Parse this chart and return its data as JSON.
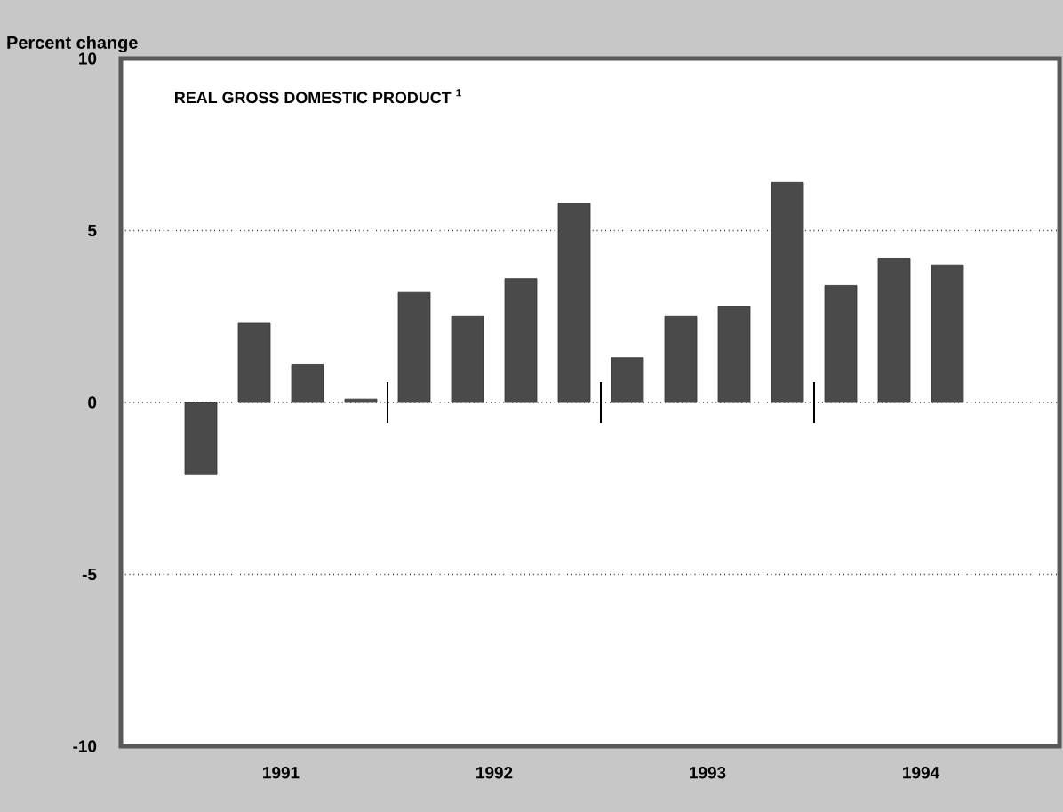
{
  "chart_data": {
    "type": "bar",
    "title": "REAL GROSS DOMESTIC PRODUCT $^{1}$",
    "ylabel": "Percent change",
    "x": [
      1991.125,
      1991.375,
      1991.625,
      1991.875,
      1992.125,
      1992.375,
      1992.625,
      1992.875,
      1993.125,
      1993.375,
      1993.625,
      1993.875,
      1994.125,
      1994.375,
      1994.625
    ],
    "values": [
      -2.1,
      2.3,
      1.1,
      0.1,
      3.2,
      2.5,
      3.6,
      5.8,
      1.3,
      2.5,
      2.8,
      6.4,
      3.4,
      4.2,
      4.0
    ],
    "color": "#4a4a4a",
    "xlim": [
      1990.75,
      1995.15
    ],
    "ylim": [
      -10,
      10
    ],
    "xticks": [
      {
        "value": 1991.5,
        "label": "1991"
      },
      {
        "value": 1992.5,
        "label": "1992"
      },
      {
        "value": 1993.5,
        "label": "1993"
      },
      {
        "value": 1994.5,
        "label": "1994"
      },
      {
        "value": 1992,
        "label": null
      },
      {
        "value": 1993,
        "label": null
      },
      {
        "value": 1994,
        "label": null
      }
    ],
    "yticks": [
      -10,
      -5,
      0,
      5,
      10
    ],
    "grid": true
  }
}
